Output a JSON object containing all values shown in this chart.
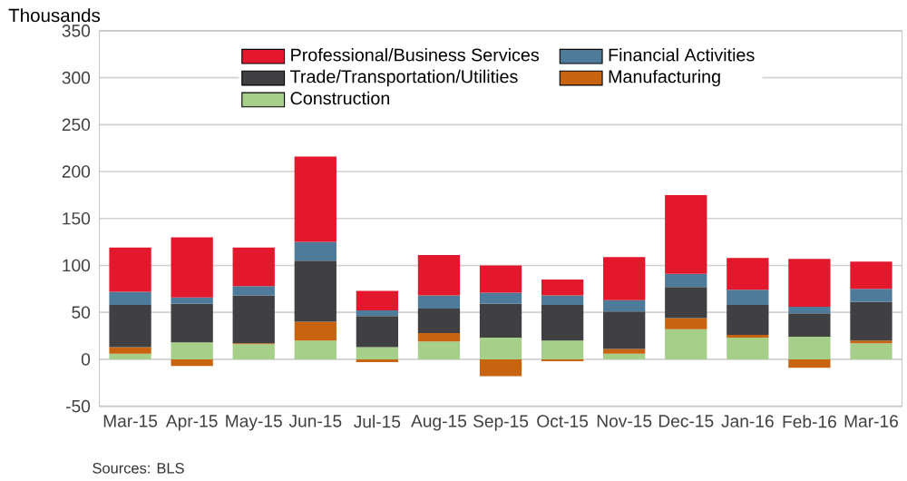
{
  "chart_data": {
    "type": "bar",
    "stacked": true,
    "ylabel": "Thousands",
    "categories": [
      "Mar-15",
      "Apr-15",
      "May-15",
      "Jun-15",
      "Jul-15",
      "Aug-15",
      "Sep-15",
      "Oct-15",
      "Nov-15",
      "Dec-15",
      "Jan-16",
      "Feb-16",
      "Mar-16"
    ],
    "series": [
      {
        "name": "Construction",
        "color": "#a6cf8a",
        "values": [
          6,
          18,
          16,
          20,
          13,
          19,
          23,
          20,
          6,
          32,
          23,
          24,
          17
        ]
      },
      {
        "name": "Manufacturing",
        "color": "#c8640f",
        "values": [
          7,
          -7,
          1,
          20,
          -3,
          9,
          -18,
          -2,
          5,
          12,
          3,
          -9,
          3
        ]
      },
      {
        "name": "Trade/Transportation/Utilities",
        "color": "#404042",
        "values": [
          45,
          41,
          51,
          65,
          33,
          26,
          36,
          38,
          40,
          33,
          32,
          25,
          41
        ]
      },
      {
        "name": "Financial Activities",
        "color": "#4f7b9b",
        "values": [
          14,
          7,
          10,
          20,
          6,
          14,
          12,
          10,
          12,
          14,
          16,
          7,
          14
        ]
      },
      {
        "name": "Professional/Business Services",
        "color": "#e3182d",
        "values": [
          47,
          64,
          41,
          91,
          21,
          43,
          29,
          17,
          46,
          84,
          34,
          51,
          29
        ]
      }
    ],
    "ylim": [
      -50,
      350
    ],
    "yticks": [
      -50,
      0,
      50,
      100,
      150,
      200,
      250,
      300,
      350
    ],
    "grid": "y",
    "legend": "top",
    "annotations": [
      "Sources: BLS"
    ]
  }
}
